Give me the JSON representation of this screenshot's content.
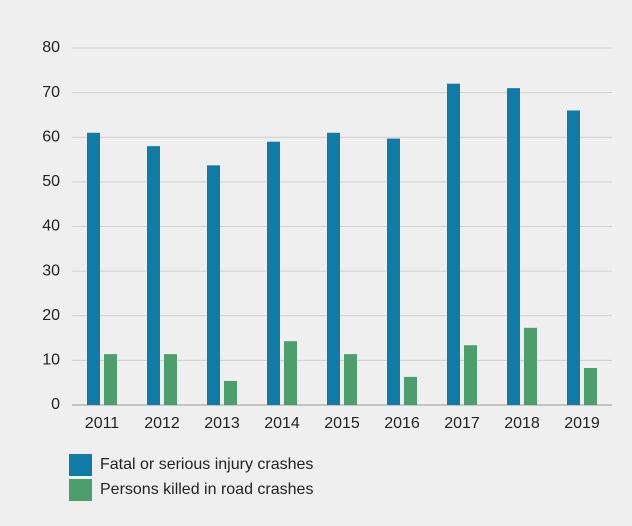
{
  "chart_data": {
    "type": "bar",
    "categories": [
      "2011",
      "2012",
      "2013",
      "2014",
      "2015",
      "2016",
      "2017",
      "2018",
      "2019"
    ],
    "series": [
      {
        "name": "Fatal or serious injury crashes",
        "color": "#0f7ba6",
        "values": [
          61,
          58,
          53.7,
          59,
          61,
          59.7,
          72,
          71,
          66
        ]
      },
      {
        "name": "Persons killed in road crashes",
        "color": "#4c9f6c",
        "values": [
          11.4,
          11.4,
          5.4,
          14.3,
          11.4,
          6.3,
          13.4,
          17.3,
          8.3
        ]
      }
    ],
    "ylim": [
      0,
      80
    ],
    "yticks": [
      0,
      10,
      20,
      30,
      40,
      50,
      60,
      70,
      80
    ],
    "grid": true
  }
}
